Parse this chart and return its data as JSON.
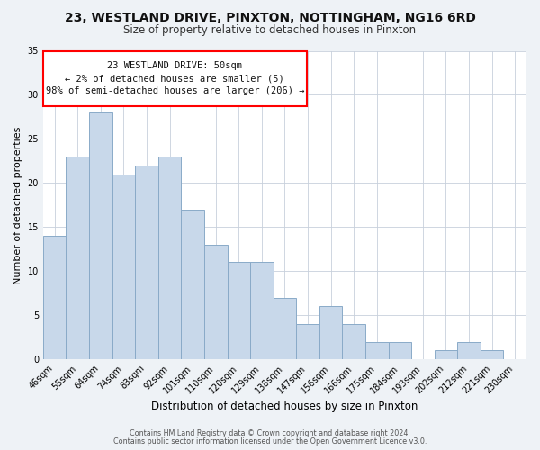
{
  "title": "23, WESTLAND DRIVE, PINXTON, NOTTINGHAM, NG16 6RD",
  "subtitle": "Size of property relative to detached houses in Pinxton",
  "xlabel": "Distribution of detached houses by size in Pinxton",
  "ylabel": "Number of detached properties",
  "bar_color": "#c8d8ea",
  "bar_edge_color": "#8aaac8",
  "categories": [
    "46sqm",
    "55sqm",
    "64sqm",
    "74sqm",
    "83sqm",
    "92sqm",
    "101sqm",
    "110sqm",
    "120sqm",
    "129sqm",
    "138sqm",
    "147sqm",
    "156sqm",
    "166sqm",
    "175sqm",
    "184sqm",
    "193sqm",
    "202sqm",
    "212sqm",
    "221sqm",
    "230sqm"
  ],
  "values": [
    14,
    23,
    28,
    21,
    22,
    23,
    17,
    13,
    11,
    11,
    7,
    4,
    6,
    4,
    2,
    2,
    0,
    1,
    2,
    1,
    0
  ],
  "ylim": [
    0,
    35
  ],
  "yticks": [
    0,
    5,
    10,
    15,
    20,
    25,
    30,
    35
  ],
  "annotation_title": "23 WESTLAND DRIVE: 50sqm",
  "annotation_line1": "← 2% of detached houses are smaller (5)",
  "annotation_line2": "98% of semi-detached houses are larger (206) →",
  "footer1": "Contains HM Land Registry data © Crown copyright and database right 2024.",
  "footer2": "Contains public sector information licensed under the Open Government Licence v3.0.",
  "background_color": "#eef2f6",
  "plot_bg_color": "#ffffff",
  "grid_color": "#c8d0dc"
}
